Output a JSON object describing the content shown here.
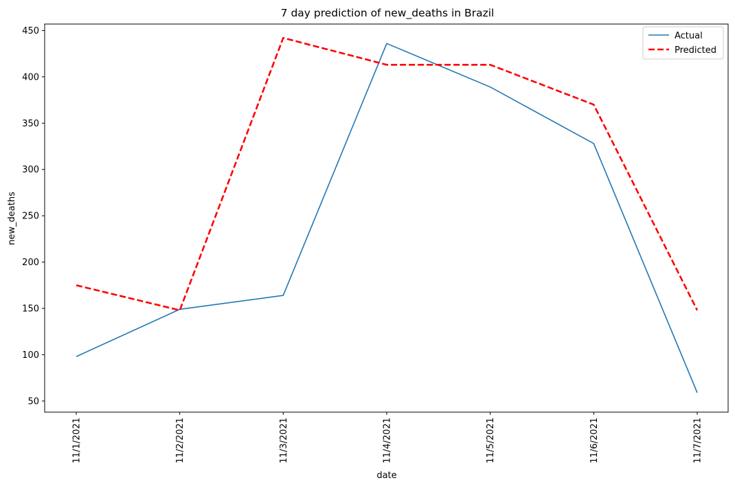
{
  "chart_data": {
    "type": "line",
    "title": "7 day prediction of new_deaths in Brazil",
    "xlabel": "date",
    "ylabel": "new_deaths",
    "categories": [
      "11/1/2021",
      "11/2/2021",
      "11/3/2021",
      "11/4/2021",
      "11/5/2021",
      "11/6/2021",
      "11/7/2021"
    ],
    "ylim": [
      38,
      457
    ],
    "yticks": [
      50,
      100,
      150,
      200,
      250,
      300,
      350,
      400,
      450
    ],
    "grid": false,
    "legend_position": "top-right",
    "series": [
      {
        "name": "Actual",
        "values": [
          98,
          149,
          164,
          436,
          389,
          328,
          59
        ],
        "color": "#1f77b4",
        "style": "solid"
      },
      {
        "name": "Predicted",
        "values": [
          175,
          148,
          442,
          413,
          413,
          370,
          148
        ],
        "color": "#ff0000",
        "style": "dashed"
      }
    ]
  }
}
